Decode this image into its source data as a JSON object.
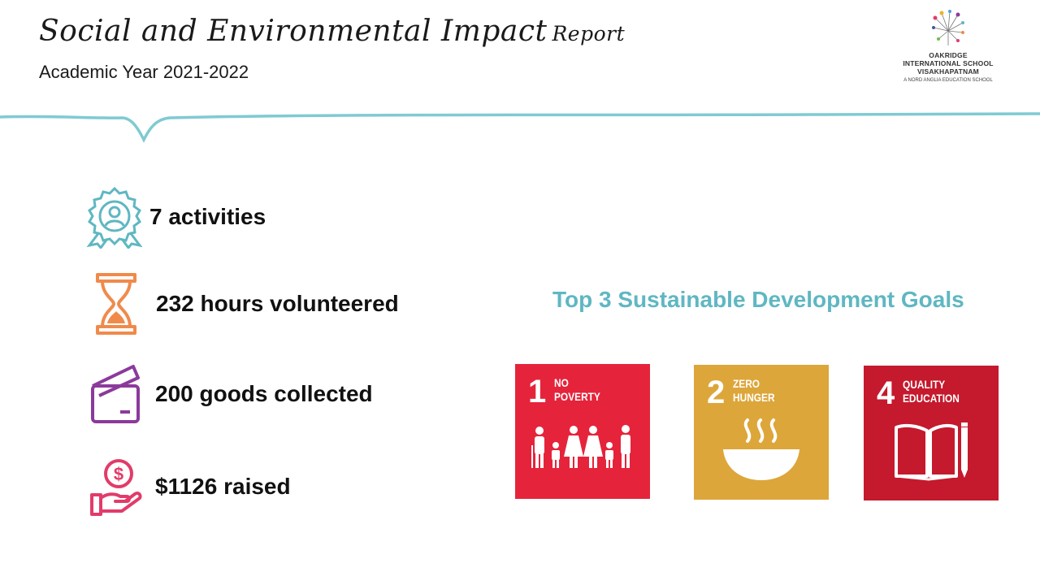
{
  "header": {
    "title_main": "Social and Environmental Impact",
    "title_suffix": "Report",
    "subtitle": "Academic Year 2021-2022"
  },
  "logo": {
    "name_line1": "OAKRIDGE",
    "name_line2": "INTERNATIONAL SCHOOL",
    "name_line3": "VISAKHAPATNAM",
    "tagline": "A NORD ANGLIA EDUCATION SCHOOL"
  },
  "stats": {
    "activities": "7 activities",
    "hours": "232 hours volunteered",
    "goods": "200 goods collected",
    "raised": "$1126 raised"
  },
  "sdg": {
    "heading": "Top 3 Sustainable Development Goals",
    "goals": [
      {
        "number": "1",
        "line1": "NO",
        "line2": "POVERTY",
        "color": "#e5243b",
        "icon": "family-icon"
      },
      {
        "number": "2",
        "line1": "ZERO",
        "line2": "HUNGER",
        "color": "#dda63a",
        "icon": "bowl-icon"
      },
      {
        "number": "4",
        "line1": "QUALITY",
        "line2": "EDUCATION",
        "color": "#c5192d",
        "icon": "book-pencil-icon"
      }
    ]
  },
  "colors": {
    "teal": "#5fb7c2",
    "orange": "#f08a4b",
    "purple": "#8b3a9c",
    "pink": "#e23b6a"
  }
}
